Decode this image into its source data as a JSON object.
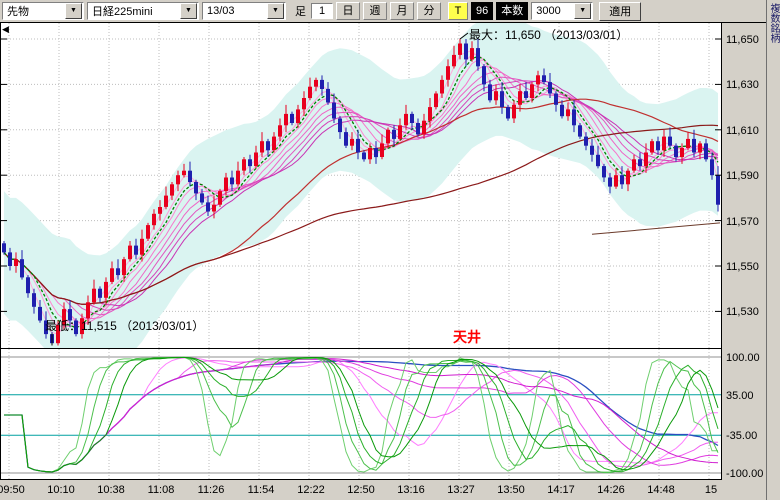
{
  "window": {
    "bg": "#d4d0c8"
  },
  "toolbar": {
    "instrument_select": {
      "value": "先物"
    },
    "symbol_select": {
      "value": "日経225mini"
    },
    "contract_select": {
      "value": "13/03"
    },
    "bar_label": "足",
    "interval_value": "1",
    "period_buttons": [
      {
        "label": "日"
      },
      {
        "label": "週"
      },
      {
        "label": "月"
      },
      {
        "label": "分"
      }
    ],
    "tick_button_label": "T",
    "bar_count_value": "96",
    "bars_label": "本数",
    "bars_count_select": "3000",
    "apply_label": "適用"
  },
  "side_tab": {
    "label": "複数銘柄"
  },
  "annotations": {
    "max_label": "最大：11,650 （2013/03/01）",
    "min_label": "最低：11,515 （2013/03/01）",
    "signal_label": "天井",
    "signal_color": "#ff0000"
  },
  "price_axis": {
    "labels": [
      "11,650",
      "11,630",
      "11,610",
      "11,590",
      "11,570",
      "11,550",
      "11,530"
    ],
    "values": [
      11650,
      11630,
      11610,
      11590,
      11570,
      11550,
      11530
    ]
  },
  "osc_axis": {
    "labels": [
      "100.00",
      "35.00",
      "-35.00",
      "-100.00"
    ],
    "values": [
      100,
      35,
      -35,
      -100
    ]
  },
  "time_axis": {
    "labels": [
      "09:50",
      "10:10",
      "10:38",
      "11:08",
      "11:26",
      "11:54",
      "12:22",
      "12:50",
      "13:16",
      "13:27",
      "13:50",
      "14:17",
      "14:26",
      "14:48",
      "15"
    ]
  },
  "chart_data": {
    "type": "candlestick",
    "symbol": "日経225mini 13/03",
    "session_date": "2013/03/01",
    "max": 11650,
    "min": 11515,
    "price_axis_range": [
      11515,
      11657
    ],
    "closes": [
      11556,
      11550,
      11553,
      11545,
      11538,
      11532,
      11526,
      11520,
      11516,
      11524,
      11531,
      11526,
      11520,
      11527,
      11534,
      11540,
      11536,
      11543,
      11549,
      11546,
      11553,
      11559,
      11555,
      11562,
      11568,
      11573,
      11576,
      11581,
      11586,
      11590,
      11592,
      11587,
      11582,
      11578,
      11574,
      11577,
      11583,
      11589,
      11586,
      11592,
      11597,
      11594,
      11600,
      11605,
      11601,
      11607,
      11612,
      11617,
      11613,
      11619,
      11624,
      11629,
      11632,
      11628,
      11622,
      11615,
      11609,
      11603,
      11606,
      11600,
      11597,
      11602,
      11598,
      11604,
      11610,
      11606,
      11612,
      11617,
      11613,
      11608,
      11614,
      11620,
      11626,
      11632,
      11638,
      11643,
      11648,
      11641,
      11646,
      11638,
      11630,
      11623,
      11627,
      11620,
      11615,
      11621,
      11627,
      11624,
      11630,
      11634,
      11631,
      11626,
      11621,
      11616,
      11619,
      11612,
      11607,
      11603,
      11599,
      11594,
      11589,
      11585,
      11590,
      11586,
      11592,
      11597,
      11594,
      11600,
      11605,
      11601,
      11607,
      11603,
      11598,
      11602,
      11606,
      11600,
      11604,
      11597,
      11590,
      11577
    ],
    "high_override": {
      "index": 76,
      "value": 11650
    },
    "low_override": {
      "index": 8,
      "value": 11515
    },
    "overlays": {
      "ma_fan_periods": [
        3,
        5,
        7,
        9,
        11,
        13,
        15,
        17
      ],
      "green_ma_period": 6,
      "slow_ma_periods": [
        34,
        80
      ],
      "band": {
        "period": 12,
        "halfwidth": 27
      },
      "trend_segment": {
        "i1": 98,
        "p1": 11564,
        "i2": 120,
        "p2": 11569
      }
    },
    "oscillator": {
      "type": "RCI",
      "green_periods": [
        9,
        12,
        15,
        18
      ],
      "magenta_periods": [
        24,
        30,
        38,
        46
      ],
      "blue_period": 60,
      "levels": [
        100,
        35,
        -35,
        -100
      ]
    },
    "colors": {
      "up": "#e8001e",
      "down": "#1f1fae",
      "fan": [
        "#ffaadd",
        "#ff99d8",
        "#ff88d2",
        "#f777cc",
        "#ee66c6",
        "#e255c0",
        "#d544ba",
        "#c933b4"
      ],
      "green_ma": "#008000",
      "slow_ma1": "#c03030",
      "slow_ma2": "#8b1a1a",
      "band_fill": "#daf4f1",
      "grid": "#bdbdbd",
      "teal": "#00a0a0",
      "trend": "#6b3a2a",
      "rci_green": [
        "#6ecf6e",
        "#4cc04c",
        "#2ab02a",
        "#0a9a0a"
      ],
      "rci_magenta": [
        "#ff7dff",
        "#f05df0",
        "#e03de0",
        "#d01dd0"
      ],
      "rci_blue": "#2a4fc0"
    }
  }
}
